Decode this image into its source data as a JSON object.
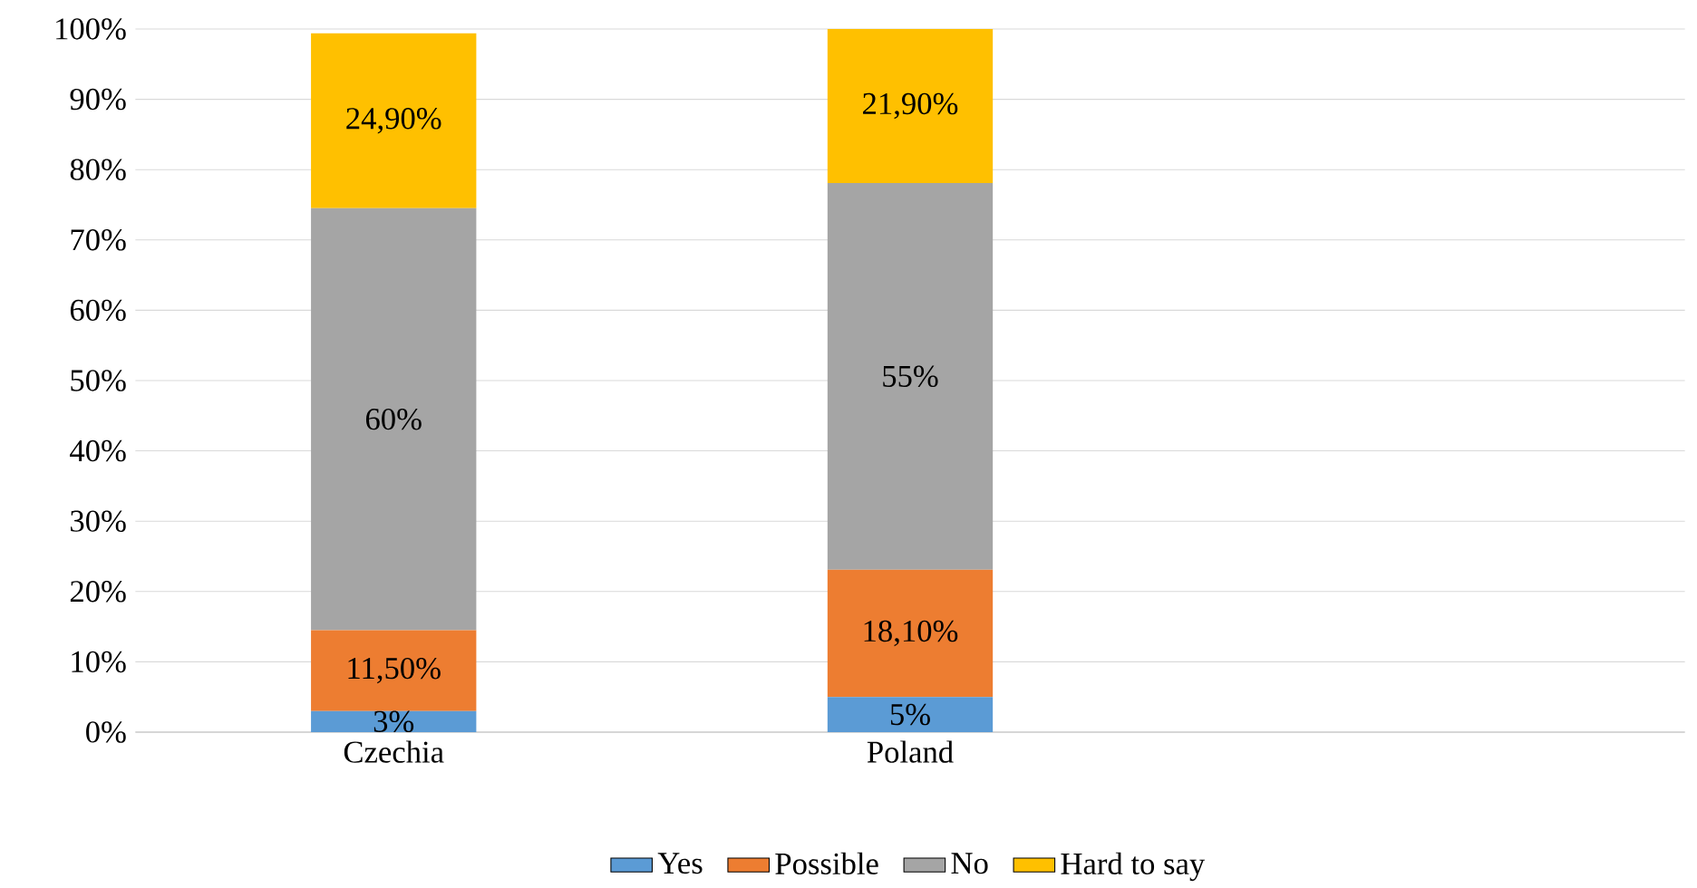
{
  "chart_data": {
    "type": "bar",
    "stacked": true,
    "categories": [
      "Czechia",
      "Poland",
      null
    ],
    "series": [
      {
        "name": "Yes",
        "color": "#5b9bd5",
        "values": [
          3,
          5,
          null
        ],
        "value_labels": [
          "3%",
          "5%",
          null
        ]
      },
      {
        "name": "Possible",
        "color": "#ed7d31",
        "values": [
          11.5,
          18.1,
          null
        ],
        "value_labels": [
          "11,50%",
          "18,10%",
          null
        ]
      },
      {
        "name": "No",
        "color": "#a5a5a5",
        "values": [
          60,
          55,
          null
        ],
        "value_labels": [
          "60%",
          "55%",
          null
        ]
      },
      {
        "name": "Hard to say",
        "color": "#ffc000",
        "values": [
          24.9,
          21.9,
          null
        ],
        "value_labels": [
          "24,90%",
          "21,90%",
          null
        ]
      }
    ],
    "ylim": [
      0,
      100
    ],
    "yticks": [
      {
        "value": 0,
        "label": "0%"
      },
      {
        "value": 10,
        "label": "10%"
      },
      {
        "value": 20,
        "label": "20%"
      },
      {
        "value": 30,
        "label": "30%"
      },
      {
        "value": 40,
        "label": "40%"
      },
      {
        "value": 50,
        "label": "50%"
      },
      {
        "value": 60,
        "label": "60%"
      },
      {
        "value": 70,
        "label": "70%"
      },
      {
        "value": 80,
        "label": "80%"
      },
      {
        "value": 90,
        "label": "90%"
      },
      {
        "value": 100,
        "label": "100%"
      }
    ],
    "grid": "y",
    "legend": "bottom"
  }
}
